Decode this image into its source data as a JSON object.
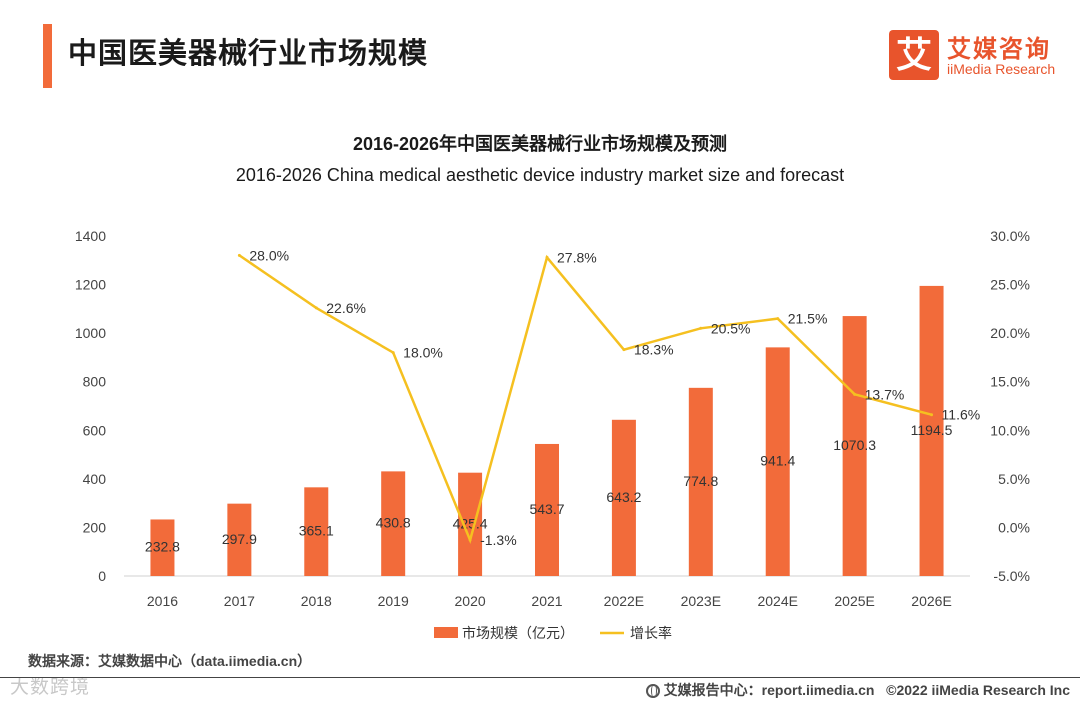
{
  "header": {
    "page_title": "中国医美器械行业市场规模",
    "logo_cn": "艾媒咨询",
    "logo_en": "iiMedia Research",
    "logo_glyph": "艾"
  },
  "colors": {
    "accent": "#f26b3a",
    "bar": "#f26b3a",
    "line": "#f5c020",
    "logo": "#e8542c"
  },
  "chart_data": {
    "type": "bar",
    "title": "2016-2026年中国医美器械行业市场规模及预测",
    "subtitle": "2016-2026 China medical aesthetic device industry market size and forecast",
    "categories": [
      "2016",
      "2017",
      "2018",
      "2019",
      "2020",
      "2021",
      "2022E",
      "2023E",
      "2024E",
      "2025E",
      "2026E"
    ],
    "series": [
      {
        "name": "市场规模（亿元）",
        "type": "bar",
        "axis": "left",
        "values": [
          232.8,
          297.9,
          365.1,
          430.8,
          425.4,
          543.7,
          643.2,
          774.8,
          941.4,
          1070.3,
          1194.5
        ],
        "labels": [
          "232.8",
          "297.9",
          "365.1",
          "430.8",
          "425.4",
          "543.7",
          "643.2",
          "774.8",
          "941.4",
          "1070.3",
          "1194.5"
        ]
      },
      {
        "name": "增长率",
        "type": "line",
        "axis": "right",
        "values": [
          null,
          28.0,
          22.6,
          18.0,
          -1.3,
          27.8,
          18.3,
          20.5,
          21.5,
          13.7,
          11.6
        ],
        "labels": [
          "",
          "28.0%",
          "22.6%",
          "18.0%",
          "-1.3%",
          "27.8%",
          "18.3%",
          "20.5%",
          "21.5%",
          "13.7%",
          "11.6%"
        ]
      }
    ],
    "y_left": {
      "min": 0,
      "max": 1400,
      "ticks": [
        "0",
        "200",
        "400",
        "600",
        "800",
        "1000",
        "1200",
        "1400"
      ]
    },
    "y_right": {
      "min": -5,
      "max": 30,
      "ticks": [
        "-5.0%",
        "0.0%",
        "5.0%",
        "10.0%",
        "15.0%",
        "20.0%",
        "25.0%",
        "30.0%"
      ]
    },
    "grid": false,
    "legend": "bottom"
  },
  "footer": {
    "source": "数据来源：艾媒数据中心（data.iimedia.cn）",
    "report": "艾媒报告中心：report.iimedia.cn",
    "copyright": "©2022  iiMedia Research  Inc",
    "watermark": "大数跨境"
  }
}
